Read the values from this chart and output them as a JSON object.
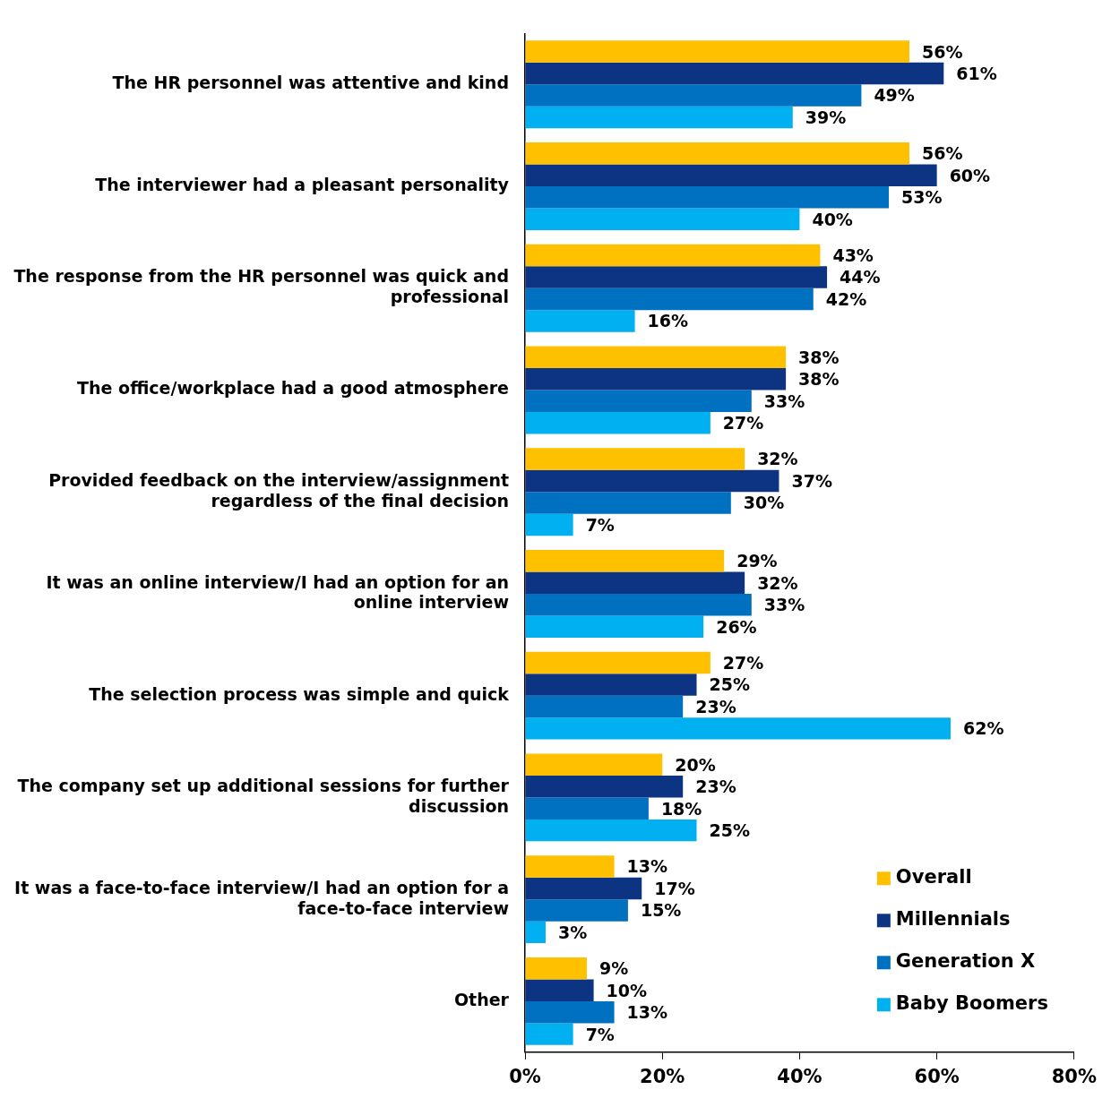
{
  "chart_data": {
    "type": "bar",
    "orientation": "horizontal",
    "categories": [
      "The HR personnel was attentive and kind",
      "The interviewer had a pleasant personality",
      "The response from the HR personnel was quick and professional",
      "The office/workplace had a good atmosphere",
      "Provided feedback on the interview/assignment regardless of the final decision",
      "It was an online interview/I had an option for an online interview",
      "The selection process was simple and quick",
      "The company set up additional sessions for further discussion",
      "It was a face-to-face interview/I had an option for a face-to-face interview",
      "Other"
    ],
    "series": [
      {
        "name": "Overall",
        "color": "#ffc000",
        "values": [
          56,
          56,
          43,
          38,
          32,
          29,
          27,
          20,
          13,
          9
        ],
        "value_labels": [
          "56%",
          "56%",
          "43%",
          "38%",
          "32%",
          "29%",
          "27%",
          "20%",
          "13%",
          "9%"
        ]
      },
      {
        "name": "Millennials",
        "color": "#0d3483",
        "values": [
          61,
          60,
          44,
          38,
          37,
          32,
          25,
          23,
          17,
          10
        ],
        "value_labels": [
          "61%",
          "60%",
          "44%",
          "38%",
          "37%",
          "32%",
          "25%",
          "23%",
          "17%",
          "10%"
        ]
      },
      {
        "name": "Generation X",
        "color": "#0070c0",
        "values": [
          49,
          53,
          42,
          33,
          30,
          33,
          23,
          18,
          15,
          13
        ],
        "value_labels": [
          "49%",
          "53%",
          "42%",
          "33%",
          "30%",
          "33%",
          "23%",
          "18%",
          "15%",
          "13%"
        ]
      },
      {
        "name": "Baby Boomers",
        "color": "#00b0f0",
        "values": [
          39,
          40,
          16,
          27,
          7,
          26,
          62,
          25,
          3,
          7
        ],
        "value_labels": [
          "39%",
          "40%",
          "16%",
          "27%",
          "7%",
          "26%",
          "62%",
          "25%",
          "3%",
          "7%"
        ]
      }
    ],
    "xlim": [
      0,
      80
    ],
    "xticks": [
      {
        "value": 0,
        "label": "0%"
      },
      {
        "value": 20,
        "label": "20%"
      },
      {
        "value": 40,
        "label": "40%"
      },
      {
        "value": 60,
        "label": "60%"
      },
      {
        "value": 80,
        "label": "80%"
      }
    ],
    "grid": false,
    "legend": "bottom right"
  }
}
